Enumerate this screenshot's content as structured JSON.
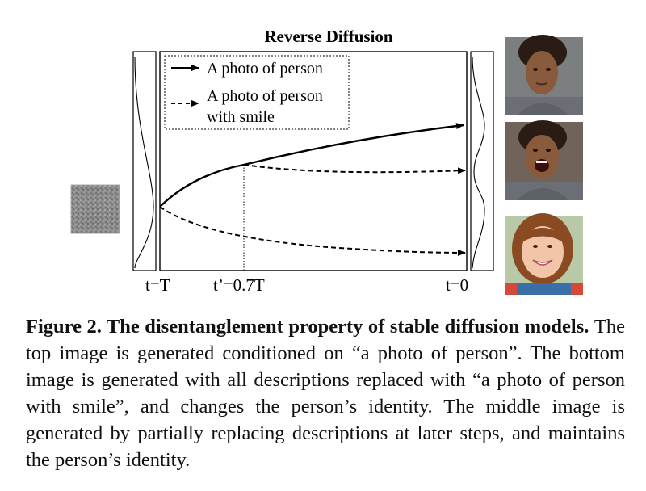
{
  "figure": {
    "title": "Reverse Diffusion",
    "legend": {
      "solid_label": "A photo of person",
      "dashed_label_line1": "A photo of person",
      "dashed_label_line2": "with smile"
    },
    "axis_labels": {
      "start": "t=T",
      "switch": "t’=0.7T",
      "end": "t=0"
    },
    "images": {
      "noise": "gaussian-noise-image",
      "top": "generated-person-image",
      "middle": "generated-person-smiling-same-identity-image",
      "bottom": "generated-smiling-person-different-identity-image"
    }
  },
  "caption": {
    "bold_part": "Figure 2.  The disentanglement property of stable diffusion models.",
    "text": "The top image is generated conditioned on “a photo of person”. The bottom image is generated with all descriptions replaced with “a photo of person with smile”, and changes the person’s identity. The middle image is generated by partially replacing descriptions at later steps, and maintains the person’s identity."
  },
  "colors": {
    "line": "#000000",
    "noise": "#8a8a8a",
    "skin_dark": "#8a5a3c",
    "skin_light": "#f2c4a8",
    "hair_dark": "#2a1c14",
    "hair_brown": "#8a4a22",
    "shirt_gray": "#6b6e75"
  }
}
